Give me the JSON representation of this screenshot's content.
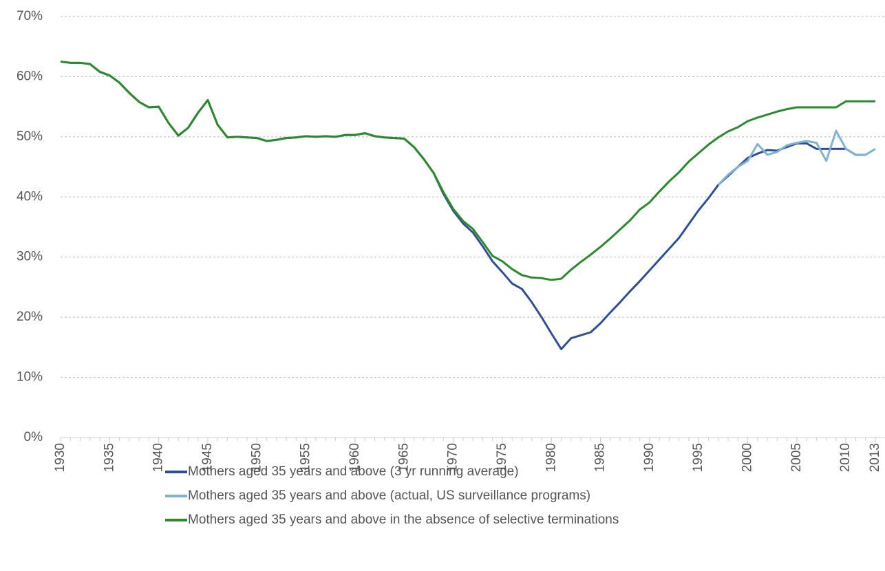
{
  "chart_data": {
    "type": "line",
    "x": [
      1930,
      1931,
      1932,
      1933,
      1934,
      1935,
      1936,
      1937,
      1938,
      1939,
      1940,
      1941,
      1942,
      1943,
      1944,
      1945,
      1946,
      1947,
      1948,
      1949,
      1950,
      1951,
      1952,
      1953,
      1954,
      1955,
      1956,
      1957,
      1958,
      1959,
      1960,
      1961,
      1962,
      1963,
      1964,
      1965,
      1966,
      1967,
      1968,
      1969,
      1970,
      1971,
      1972,
      1973,
      1974,
      1975,
      1976,
      1977,
      1978,
      1979,
      1980,
      1981,
      1982,
      1983,
      1984,
      1985,
      1986,
      1987,
      1988,
      1989,
      1990,
      1991,
      1992,
      1993,
      1994,
      1995,
      1996,
      1997,
      1998,
      1999,
      2000,
      2001,
      2002,
      2003,
      2004,
      2005,
      2006,
      2007,
      2008,
      2009,
      2010,
      2011,
      2012,
      2013
    ],
    "series": [
      {
        "name": "Mothers aged 35 years and above (3 yr running average)",
        "color": "#2e4f97",
        "values": [
          62.5,
          62.3,
          62.3,
          62.1,
          60.8,
          60.2,
          59.0,
          57.3,
          55.8,
          54.9,
          55.0,
          52.3,
          50.2,
          51.5,
          54.0,
          56.1,
          52.0,
          49.9,
          50.0,
          49.9,
          49.8,
          49.3,
          49.5,
          49.8,
          49.9,
          50.1,
          50.0,
          50.1,
          50.0,
          50.3,
          50.3,
          50.6,
          50.1,
          49.9,
          49.8,
          49.7,
          48.3,
          46.3,
          44.0,
          40.5,
          37.7,
          35.6,
          34.1,
          31.8,
          29.3,
          27.5,
          25.6,
          24.7,
          22.5,
          20.0,
          17.3,
          14.7,
          16.5,
          17.0,
          17.5,
          19.0,
          20.8,
          22.5,
          24.3,
          26.0,
          27.8,
          29.6,
          31.4,
          33.2,
          35.5,
          37.8,
          39.8,
          42.0,
          43.5,
          45.0,
          46.5,
          47.2,
          47.8,
          47.7,
          48.3,
          48.9,
          48.9,
          48.0,
          48.0,
          48.0,
          48.0,
          47.0,
          47.0,
          null
        ]
      },
      {
        "name": "Mothers aged 35 years and above (actual, US surveillance programs)",
        "color": "#7fb3d5",
        "values": [
          null,
          null,
          null,
          null,
          null,
          null,
          null,
          null,
          null,
          null,
          null,
          null,
          null,
          null,
          null,
          null,
          null,
          null,
          null,
          null,
          null,
          null,
          null,
          null,
          null,
          null,
          null,
          null,
          null,
          null,
          null,
          null,
          null,
          null,
          null,
          null,
          null,
          null,
          null,
          null,
          null,
          null,
          null,
          null,
          null,
          null,
          null,
          null,
          null,
          null,
          null,
          null,
          null,
          null,
          null,
          null,
          null,
          null,
          null,
          null,
          null,
          null,
          null,
          null,
          null,
          null,
          null,
          42.0,
          43.7,
          45.0,
          46.0,
          48.8,
          47.0,
          47.5,
          48.6,
          49.0,
          49.3,
          49.0,
          46.0,
          51.0,
          48.0,
          47.0,
          47.0,
          48.0
        ]
      },
      {
        "name": "Mothers aged 35 years and above in the absence of selective terminations",
        "color": "#2b8a2b",
        "values": [
          62.5,
          62.3,
          62.3,
          62.1,
          60.8,
          60.2,
          59.0,
          57.3,
          55.8,
          54.9,
          55.0,
          52.3,
          50.2,
          51.5,
          54.0,
          56.1,
          52.0,
          49.9,
          50.0,
          49.9,
          49.8,
          49.3,
          49.5,
          49.8,
          49.9,
          50.1,
          50.0,
          50.1,
          50.0,
          50.3,
          50.3,
          50.6,
          50.1,
          49.9,
          49.8,
          49.7,
          48.3,
          46.3,
          44.0,
          40.8,
          38.0,
          36.0,
          34.7,
          32.5,
          30.2,
          29.3,
          28.0,
          27.0,
          26.6,
          26.5,
          26.2,
          26.4,
          27.9,
          29.2,
          30.4,
          31.7,
          33.1,
          34.6,
          36.1,
          37.9,
          39.1,
          40.9,
          42.6,
          44.1,
          45.9,
          47.3,
          48.7,
          49.9,
          50.9,
          51.6,
          52.6,
          53.2,
          53.7,
          54.2,
          54.6,
          54.9,
          54.9,
          54.9,
          54.9,
          54.9,
          55.9,
          55.9,
          55.9,
          55.9
        ]
      }
    ],
    "xlim": [
      1930,
      2013
    ],
    "xticks": [
      1930,
      1935,
      1940,
      1945,
      1950,
      1955,
      1960,
      1965,
      1970,
      1975,
      1980,
      1985,
      1990,
      1995,
      2000,
      2005,
      2010,
      2013
    ],
    "ylim": [
      0,
      70
    ],
    "yticks": [
      {
        "value": 0,
        "label": "0%"
      },
      {
        "value": 10,
        "label": "10%"
      },
      {
        "value": 20,
        "label": "20%"
      },
      {
        "value": 30,
        "label": "30%"
      },
      {
        "value": 40,
        "label": "40%"
      },
      {
        "value": 50,
        "label": "50%"
      },
      {
        "value": 60,
        "label": "60%"
      },
      {
        "value": 70,
        "label": "70%"
      }
    ],
    "grid": true,
    "legend": "bottom"
  }
}
